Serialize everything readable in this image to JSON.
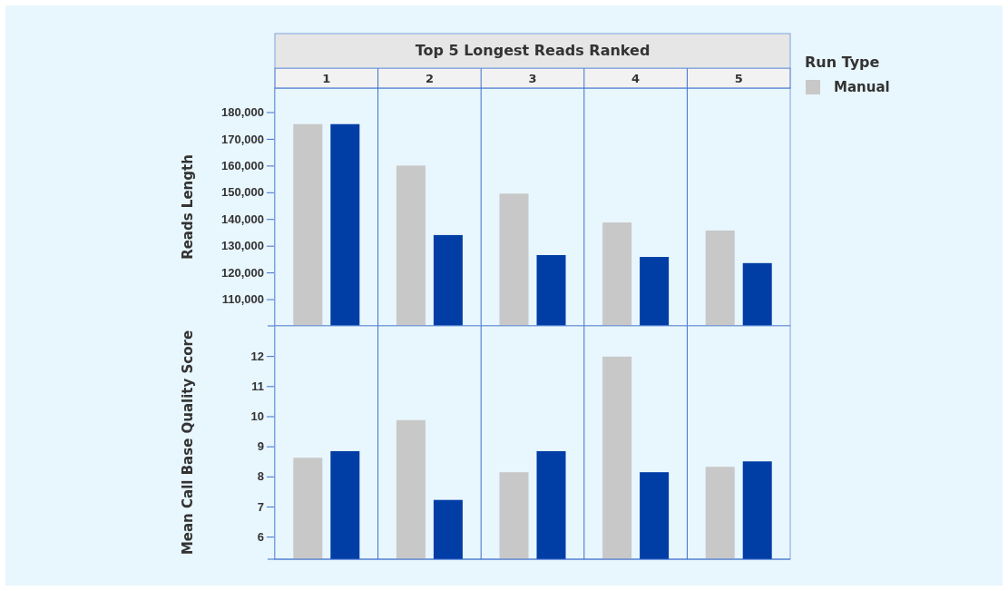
{
  "chart_data": [
    {
      "type": "bar",
      "title": "Top 5 Longest Reads Ranked",
      "ylabel": "Reads Length",
      "legend_title": "Run Type",
      "legend": "top right",
      "categories": [
        "1",
        "2",
        "3",
        "4",
        "5"
      ],
      "series": [
        {
          "name": "Manual",
          "color": "#c8c8c8",
          "values": [
            175500,
            160000,
            149500,
            138700,
            135700
          ]
        },
        {
          "color": "#003da5",
          "values": [
            175500,
            134000,
            126500,
            125800,
            123500
          ]
        }
      ],
      "ylim": [
        100000,
        189000
      ],
      "yticks": [
        {
          "value": 110000,
          "label": "110,000"
        },
        {
          "value": 120000,
          "label": "120,000"
        },
        {
          "value": 130000,
          "label": "130,000"
        },
        {
          "value": 140000,
          "label": "140,000"
        },
        {
          "value": 150000,
          "label": "150,000"
        },
        {
          "value": 160000,
          "label": "160,000"
        },
        {
          "value": 170000,
          "label": "170,000"
        },
        {
          "value": 180000,
          "label": "180,000"
        }
      ]
    },
    {
      "type": "bar",
      "ylabel": "Mean Call Base Quality Score",
      "tick_labels": "y",
      "series": [
        {
          "color": "#c8c8c8",
          "values": [
            8.62,
            9.87,
            8.14,
            11.98,
            8.32
          ]
        },
        {
          "color": "#003da5",
          "values": [
            8.84,
            7.22,
            8.84,
            8.14,
            8.5
          ]
        }
      ],
      "ylim": [
        5.25,
        13
      ],
      "yticks": [
        6,
        7,
        8,
        9,
        10,
        11,
        12
      ]
    }
  ]
}
